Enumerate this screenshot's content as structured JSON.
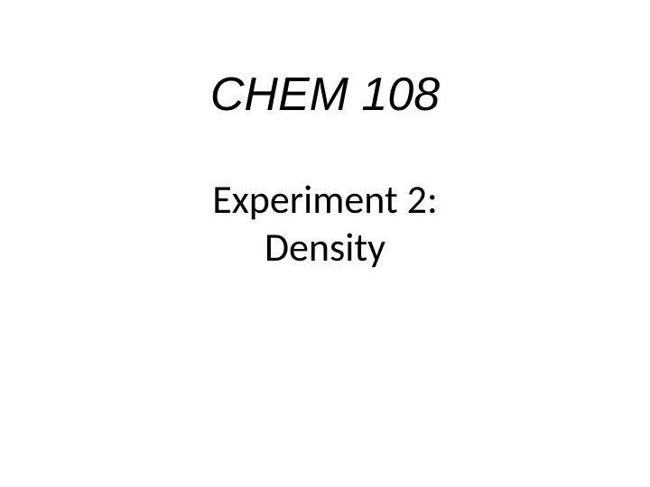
{
  "slide": {
    "course_title": "CHEM 108",
    "experiment_title_line1": "Experiment 2:",
    "experiment_title_line2": "Density",
    "styles": {
      "background_color": "#ffffff",
      "text_color": "#000000",
      "course_title_fontsize": 52,
      "course_title_fontweight": 400,
      "course_title_fontstyle": "italic",
      "course_title_fontfamily": "Arial",
      "experiment_title_fontsize": 44,
      "experiment_title_fontweight": 400,
      "experiment_title_fontfamily": "Calibri"
    }
  }
}
